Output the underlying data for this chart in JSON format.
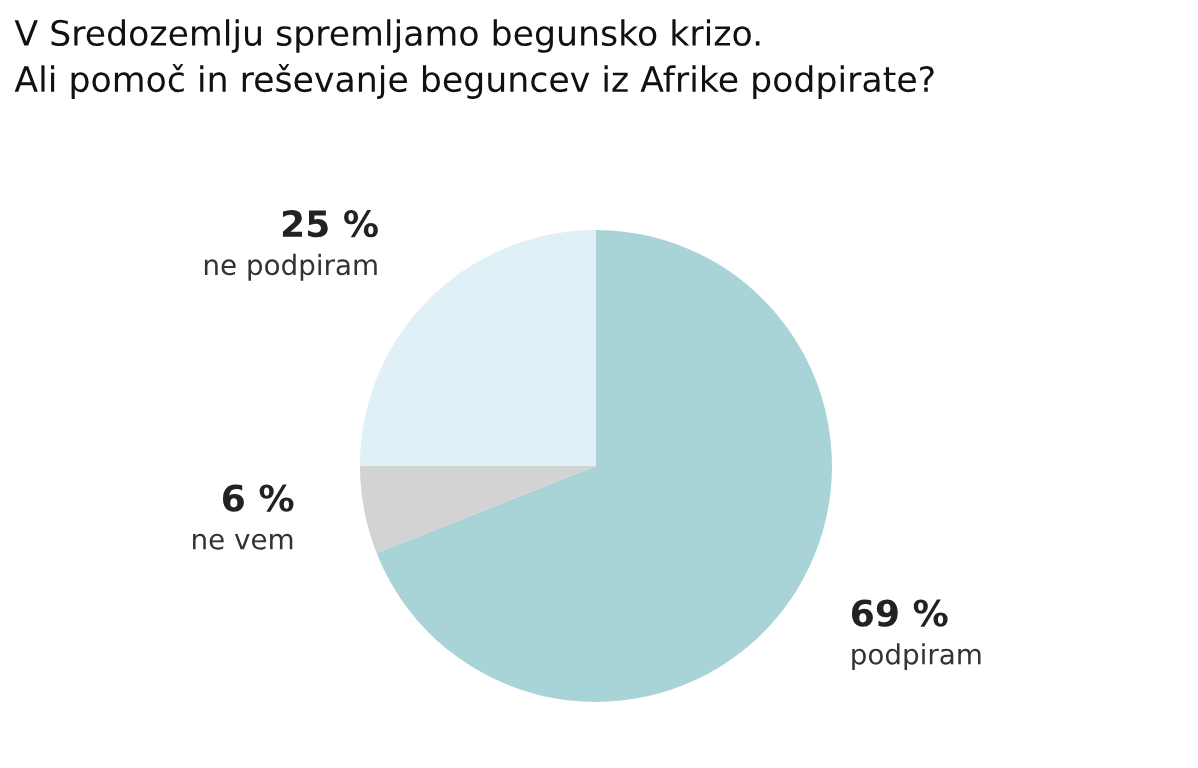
{
  "chart_data": {
    "type": "pie",
    "title": "V Sredozemlju spremljamo begunsko krizo.\nAli pomoč in reševanje beguncev iz Afrike podpirate?",
    "categories": [
      "podpiram",
      "ne vem",
      "ne podpiram"
    ],
    "values": [
      69,
      6,
      25
    ],
    "value_labels": [
      "69 %",
      "6 %",
      "25 %"
    ],
    "colors": [
      "#a8d4d8",
      "#d3d3d3",
      "#dff0f7"
    ],
    "legend": false
  }
}
